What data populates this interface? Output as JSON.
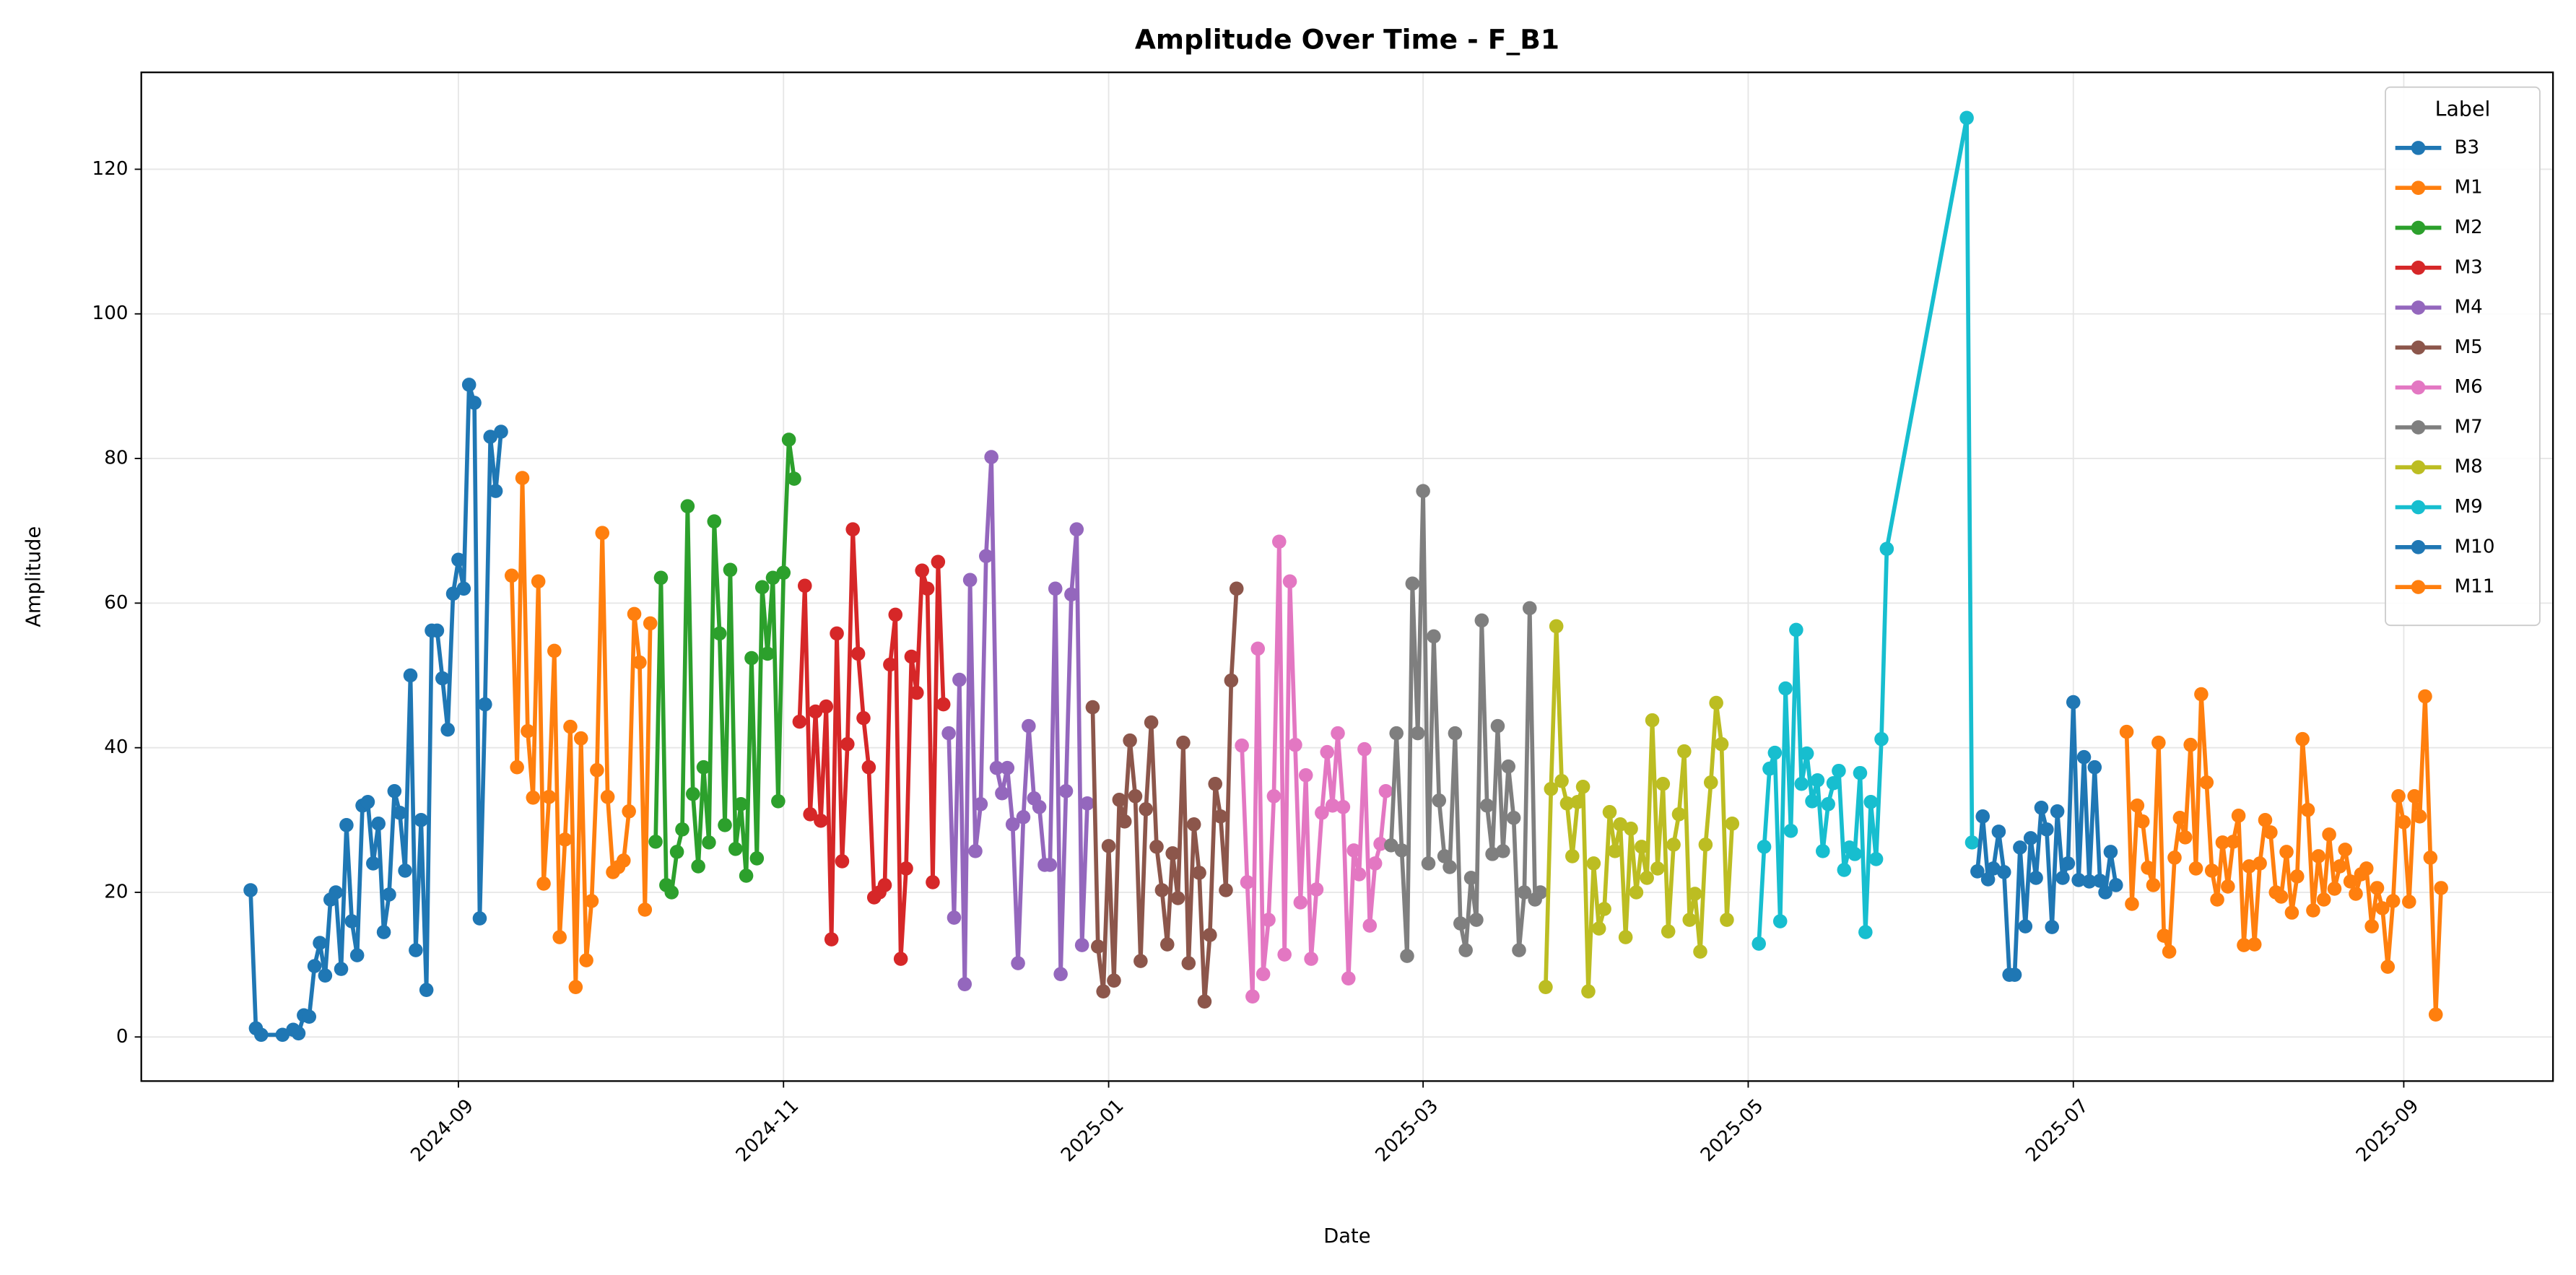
{
  "chart_data": {
    "type": "line",
    "title": "Amplitude Over Time - F_B1",
    "x_label": "Date",
    "y_label": "Amplitude",
    "xlim": [
      19907.5,
      20360
    ],
    "ylim": [
      -6.1,
      133.4
    ],
    "xticks": [
      {
        "value": 19967,
        "label": "2024-09"
      },
      {
        "value": 20028,
        "label": "2024-11"
      },
      {
        "value": 20089,
        "label": "2025-01"
      },
      {
        "value": 20148,
        "label": "2025-03"
      },
      {
        "value": 20209,
        "label": "2025-05"
      },
      {
        "value": 20270,
        "label": "2025-07"
      },
      {
        "value": 20332,
        "label": "2025-09"
      }
    ],
    "yticks": [
      0,
      20,
      40,
      60,
      80,
      100,
      120
    ],
    "grid": true,
    "legend_title": "Label",
    "legend_position": "upper right",
    "series": [
      {
        "name": "B3",
        "color": "#1f77b4",
        "x": [
          19928,
          19929,
          19930,
          19934,
          19936,
          19937,
          19938,
          19939,
          19940,
          19941,
          19942,
          19943,
          19944,
          19945,
          19946,
          19947,
          19948,
          19949,
          19950,
          19951,
          19952,
          19953,
          19954,
          19955,
          19956,
          19957,
          19958,
          19959,
          19960,
          19961,
          19962,
          19963,
          19964,
          19965,
          19966,
          19967,
          19968,
          19969,
          19970,
          19971,
          19972,
          19973,
          19974,
          19975
        ],
        "values": [
          20.3,
          1.2,
          0.3,
          0.3,
          1,
          0.5,
          3,
          2.8,
          9.8,
          13,
          8.5,
          19,
          20,
          9.4,
          29.3,
          16,
          11.3,
          32,
          32.5,
          24,
          29.5,
          14.5,
          19.7,
          34,
          31,
          23,
          50,
          12,
          30,
          6.5,
          56.2,
          56.2,
          49.6,
          42.5,
          61.3,
          66,
          62,
          90.2,
          87.7,
          16.4,
          46,
          83,
          75.5,
          83.7
        ]
      },
      {
        "name": "M1",
        "color": "#ff7f0e",
        "x": [
          19977,
          19978,
          19979,
          19980,
          19981,
          19982,
          19983,
          19984,
          19985,
          19986,
          19987,
          19988,
          19989,
          19990,
          19991,
          19992,
          19993,
          19994,
          19995,
          19996,
          19997,
          19998,
          19999,
          20000,
          20001,
          20002,
          20003
        ],
        "values": [
          63.8,
          37.3,
          77.3,
          42.3,
          33.1,
          63,
          21.2,
          33.2,
          53.4,
          13.8,
          27.3,
          42.9,
          6.9,
          41.3,
          10.6,
          18.8,
          36.9,
          69.7,
          33.2,
          22.8,
          23.5,
          24.4,
          31.2,
          58.5,
          51.8,
          17.6,
          57.2
        ]
      },
      {
        "name": "M2",
        "color": "#2ca02c",
        "x": [
          20004,
          20005,
          20006,
          20007,
          20008,
          20009,
          20010,
          20011,
          20012,
          20013,
          20014,
          20015,
          20016,
          20017,
          20018,
          20019,
          20020,
          20021,
          20022,
          20023,
          20024,
          20025,
          20026,
          20027,
          20028,
          20029,
          20030
        ],
        "values": [
          27,
          63.5,
          21,
          20,
          25.6,
          28.7,
          73.4,
          33.6,
          23.6,
          37.3,
          26.9,
          71.3,
          55.8,
          29.3,
          64.6,
          26,
          32.2,
          22.3,
          52.4,
          24.7,
          62.2,
          53,
          63.5,
          32.6,
          64.2,
          82.6,
          77.2
        ]
      },
      {
        "name": "M3",
        "color": "#d62728",
        "x": [
          20031,
          20032,
          20033,
          20034,
          20035,
          20036,
          20037,
          20038,
          20039,
          20040,
          20041,
          20042,
          20043,
          20044,
          20045,
          20046,
          20047,
          20048,
          20049,
          20050,
          20051,
          20052,
          20053,
          20054,
          20055,
          20056,
          20057,
          20058
        ],
        "values": [
          43.6,
          62.4,
          30.8,
          45,
          29.9,
          45.7,
          13.5,
          55.8,
          24.3,
          40.5,
          70.2,
          53,
          44.1,
          37.3,
          19.3,
          20,
          21,
          51.5,
          58.4,
          10.8,
          23.3,
          52.6,
          47.6,
          64.5,
          62,
          21.4,
          65.7,
          46
        ]
      },
      {
        "name": "M4",
        "color": "#9467bd",
        "x": [
          20059,
          20060,
          20061,
          20062,
          20063,
          20064,
          20065,
          20066,
          20067,
          20068,
          20069,
          20070,
          20071,
          20072,
          20073,
          20074,
          20075,
          20076,
          20077,
          20078,
          20079,
          20080,
          20081,
          20082,
          20083,
          20084,
          20085
        ],
        "values": [
          42,
          16.5,
          49.4,
          7.3,
          63.2,
          25.7,
          32.2,
          66.5,
          80.2,
          37.2,
          33.7,
          37.2,
          29.4,
          10.2,
          30.4,
          43,
          33,
          31.8,
          23.8,
          23.8,
          62,
          8.7,
          34,
          61.2,
          70.2,
          12.7,
          32.3
        ]
      },
      {
        "name": "M5",
        "color": "#8c564b",
        "x": [
          20086,
          20087,
          20088,
          20089,
          20090,
          20091,
          20092,
          20093,
          20094,
          20095,
          20096,
          20097,
          20098,
          20099,
          20100,
          20101,
          20102,
          20103,
          20104,
          20105,
          20106,
          20107,
          20108,
          20109,
          20110,
          20111,
          20112,
          20113
        ],
        "values": [
          45.6,
          12.5,
          6.3,
          26.4,
          7.8,
          32.8,
          29.8,
          41,
          33.3,
          10.5,
          31.5,
          43.5,
          26.3,
          20.3,
          12.8,
          25.4,
          19.2,
          40.7,
          10.2,
          29.4,
          22.7,
          4.9,
          14.1,
          35,
          30.5,
          20.3,
          49.3,
          62
        ]
      },
      {
        "name": "M6",
        "color": "#e377c2",
        "x": [
          20114,
          20115,
          20116,
          20117,
          20118,
          20119,
          20120,
          20121,
          20122,
          20123,
          20124,
          20125,
          20126,
          20127,
          20128,
          20129,
          20130,
          20131,
          20132,
          20133,
          20134,
          20135,
          20136,
          20137,
          20138,
          20139,
          20140,
          20141
        ],
        "values": [
          40.3,
          21.4,
          5.6,
          53.7,
          8.7,
          16.2,
          33.3,
          68.5,
          11.4,
          63,
          40.4,
          18.6,
          36.2,
          10.8,
          20.4,
          31,
          39.4,
          32,
          42,
          31.8,
          8.1,
          25.8,
          22.5,
          39.8,
          15.4,
          24,
          26.7,
          34
        ]
      },
      {
        "name": "M7",
        "color": "#7f7f7f",
        "x": [
          20142,
          20143,
          20144,
          20145,
          20146,
          20147,
          20148,
          20149,
          20150,
          20151,
          20152,
          20153,
          20154,
          20155,
          20156,
          20157,
          20158,
          20159,
          20160,
          20161,
          20162,
          20163,
          20164,
          20165,
          20166,
          20167,
          20168,
          20169,
          20170
        ],
        "values": [
          26.5,
          42,
          25.8,
          11.2,
          62.7,
          42,
          75.5,
          24,
          55.4,
          32.7,
          25,
          23.5,
          42,
          15.7,
          12,
          22,
          16.2,
          57.6,
          32,
          25.3,
          43,
          25.7,
          37.4,
          30.3,
          12,
          20,
          59.3,
          19,
          20
        ]
      },
      {
        "name": "M8",
        "color": "#bcbd22",
        "x": [
          20171,
          20172,
          20173,
          20174,
          20175,
          20176,
          20177,
          20178,
          20179,
          20180,
          20181,
          20182,
          20183,
          20184,
          20185,
          20186,
          20187,
          20188,
          20189,
          20190,
          20191,
          20192,
          20193,
          20194,
          20195,
          20196,
          20197,
          20198,
          20199,
          20200,
          20201,
          20202,
          20203,
          20204,
          20205,
          20206
        ],
        "values": [
          6.9,
          34.3,
          56.8,
          35.4,
          32.3,
          25,
          32.5,
          34.6,
          6.3,
          24,
          15,
          17.7,
          31.1,
          25.7,
          29.4,
          13.8,
          28.8,
          20,
          26.3,
          22,
          43.8,
          23.3,
          35,
          14.6,
          26.6,
          30.8,
          39.5,
          16.2,
          19.8,
          11.8,
          26.6,
          35.2,
          46.2,
          40.5,
          16.2,
          29.5
        ]
      },
      {
        "name": "M9",
        "color": "#17becf",
        "x": [
          20211,
          20212,
          20213,
          20214,
          20215,
          20216,
          20217,
          20218,
          20219,
          20220,
          20221,
          20222,
          20223,
          20224,
          20225,
          20226,
          20227,
          20228,
          20229,
          20230,
          20231,
          20232,
          20233,
          20234,
          20235,
          20250,
          20251
        ],
        "values": [
          12.9,
          26.3,
          37.1,
          39.3,
          16,
          48.2,
          28.5,
          56.3,
          35,
          39.2,
          32.6,
          35.5,
          25.7,
          32.2,
          35.1,
          36.8,
          23.1,
          26.2,
          25.3,
          36.5,
          14.5,
          32.5,
          24.6,
          41.2,
          67.5,
          127.1,
          26.9
        ]
      },
      {
        "name": "M10",
        "color": "#1f77b4",
        "x": [
          20252,
          20253,
          20254,
          20255,
          20256,
          20257,
          20258,
          20259,
          20260,
          20261,
          20262,
          20263,
          20264,
          20265,
          20266,
          20267,
          20268,
          20269,
          20270,
          20271,
          20272,
          20273,
          20274,
          20275,
          20276,
          20277,
          20278
        ],
        "values": [
          22.9,
          30.5,
          21.8,
          23.3,
          28.4,
          22.8,
          8.6,
          8.6,
          26.2,
          15.3,
          27.5,
          22,
          31.7,
          28.7,
          15.2,
          31.2,
          22,
          24,
          46.3,
          21.7,
          38.7,
          21.5,
          37.3,
          21.6,
          20,
          25.6,
          21
        ]
      },
      {
        "name": "M11",
        "color": "#ff7f0e",
        "x": [
          20280,
          20281,
          20282,
          20283,
          20284,
          20285,
          20286,
          20287,
          20288,
          20289,
          20290,
          20291,
          20292,
          20293,
          20294,
          20295,
          20296,
          20297,
          20298,
          20299,
          20300,
          20301,
          20302,
          20303,
          20304,
          20305,
          20306,
          20307,
          20308,
          20309,
          20310,
          20311,
          20312,
          20313,
          20314,
          20315,
          20316,
          20317,
          20318,
          20319,
          20320,
          20321,
          20322,
          20323,
          20324,
          20325,
          20326,
          20327,
          20328,
          20329,
          20330,
          20331,
          20332,
          20333,
          20334,
          20335,
          20336,
          20337,
          20338,
          20339
        ],
        "values": [
          42.2,
          18.4,
          32,
          29.8,
          23.4,
          21,
          40.7,
          14,
          11.8,
          24.8,
          30.3,
          27.6,
          40.4,
          23.3,
          47.4,
          35.2,
          23,
          19,
          26.9,
          20.8,
          27,
          30.6,
          12.7,
          23.6,
          12.8,
          24,
          30,
          28.3,
          20,
          19.4,
          25.6,
          17.2,
          22.2,
          41.2,
          31.4,
          17.5,
          25,
          19,
          28,
          20.5,
          23.6,
          25.9,
          21.5,
          19.8,
          22.5,
          23.3,
          15.3,
          20.6,
          17.8,
          9.7,
          18.8,
          33.3,
          29.7,
          18.7,
          33.3,
          30.5,
          47.1,
          24.8,
          3.1,
          20.6
        ]
      }
    ]
  }
}
